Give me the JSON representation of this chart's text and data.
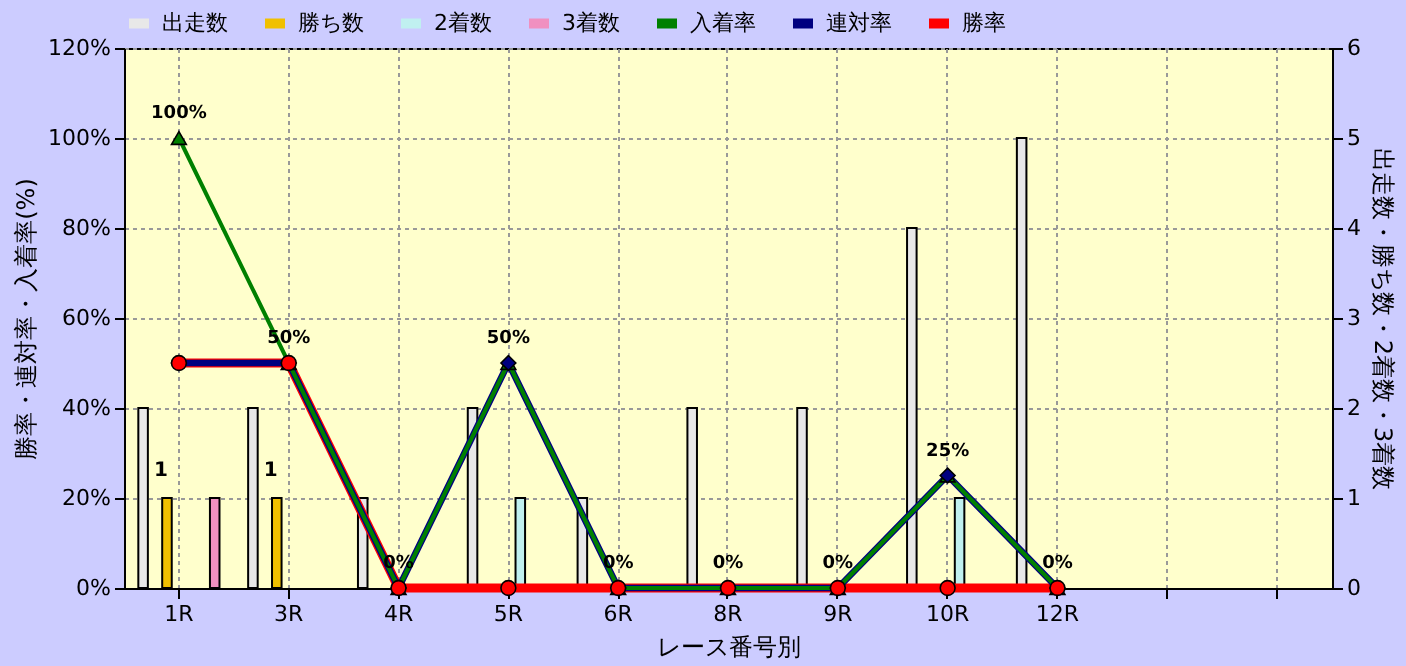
{
  "chart_data": {
    "type": "bar",
    "xlabel": "レース番号別",
    "ylabel": "勝率・連対率・入着率(%)",
    "y2label": "出走数・勝ち数・2着数・3着数",
    "categories": [
      "1R",
      "3R",
      "4R",
      "5R",
      "6R",
      "8R",
      "9R",
      "10R",
      "12R",
      null,
      null
    ],
    "series": [
      {
        "name": "出走数",
        "color": "#e8e8e8",
        "axis": "y2",
        "values": [
          2,
          2,
          1,
          2,
          1,
          2,
          2,
          4,
          5,
          null,
          null
        ]
      },
      {
        "name": "勝ち数",
        "color": "#f0c000",
        "axis": "y2",
        "values": [
          1,
          1,
          0,
          0,
          0,
          0,
          0,
          0,
          0,
          null,
          null
        ],
        "value_labels": [
          "1",
          "1",
          null,
          null,
          null,
          null,
          null,
          null,
          null,
          null,
          null
        ]
      },
      {
        "name": "2着数",
        "color": "#c0f0f0",
        "axis": "y2",
        "values": [
          0,
          0,
          0,
          1,
          0,
          0,
          0,
          1,
          0,
          null,
          null
        ]
      },
      {
        "name": "3着数",
        "color": "#f090c0",
        "axis": "y2",
        "values": [
          1,
          0,
          0,
          0,
          0,
          0,
          0,
          0,
          0,
          null,
          null
        ]
      },
      {
        "name": "入着率",
        "type": "line",
        "marker": "triangle",
        "color": "#008000",
        "values": [
          100,
          50,
          0,
          50,
          0,
          0,
          0,
          25,
          0,
          null,
          null
        ],
        "value_labels": [
          "100%",
          "50%",
          "0%",
          "50%",
          "0%",
          "0%",
          "0%",
          "25%",
          "0%",
          null,
          null
        ]
      },
      {
        "name": "連対率",
        "type": "line",
        "marker": "diamond",
        "color": "#000080",
        "values": [
          50,
          50,
          0,
          50,
          0,
          0,
          0,
          25,
          0,
          null,
          null
        ]
      },
      {
        "name": "勝率",
        "type": "line",
        "marker": "circle",
        "color": "#ff0000",
        "values": [
          50,
          50,
          0,
          0,
          0,
          0,
          0,
          0,
          0,
          null,
          null
        ]
      }
    ],
    "ylim": [
      0,
      120
    ],
    "yticks": [
      {
        "value": 0,
        "label": "0%"
      },
      {
        "value": 20,
        "label": "20%"
      },
      {
        "value": 40,
        "label": "40%"
      },
      {
        "value": 60,
        "label": "60%"
      },
      {
        "value": 80,
        "label": "80%"
      },
      {
        "value": 100,
        "label": "100%"
      },
      {
        "value": 120,
        "label": "120%"
      }
    ],
    "y2lim": [
      0,
      6
    ],
    "y2ticks": [
      0,
      1,
      2,
      3,
      4,
      5,
      6
    ],
    "grid": true,
    "legend": "top"
  }
}
